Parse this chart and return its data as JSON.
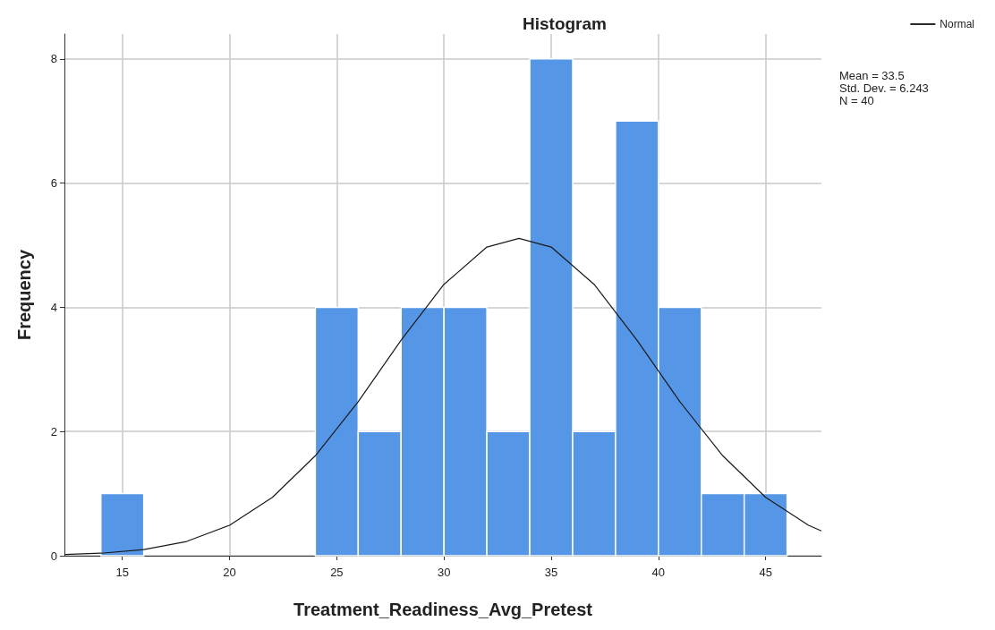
{
  "chart_data": {
    "type": "histogram",
    "title": "Histogram",
    "xlabel": "Treatment_Readiness_Avg_Pretest",
    "ylabel": "Frequency",
    "bins": [
      14,
      16,
      18,
      20,
      22,
      24,
      26,
      28,
      30,
      32,
      34,
      36,
      38,
      40,
      42,
      44,
      46
    ],
    "values": [
      1,
      0,
      0,
      0,
      0,
      4,
      2,
      4,
      4,
      2,
      8,
      2,
      7,
      4,
      1,
      1
    ],
    "color": "#5596e6",
    "series": [
      {
        "name": "Normal",
        "type": "line",
        "color": "#1a1a1a",
        "x": [
          12.3,
          14,
          16,
          18,
          20,
          22,
          24,
          26,
          28,
          30,
          32,
          33.5,
          35,
          37,
          39,
          41,
          43,
          45,
          47,
          47.6
        ],
        "values": [
          0.02,
          0.04,
          0.1,
          0.23,
          0.49,
          0.94,
          1.61,
          2.48,
          3.47,
          4.37,
          4.97,
          5.11,
          4.97,
          4.37,
          3.47,
          2.48,
          1.61,
          0.94,
          0.49,
          0.4
        ]
      }
    ],
    "xlim": [
      12.3,
      47.6
    ],
    "xticks": [
      15,
      20,
      25,
      30,
      35,
      40,
      45
    ],
    "ylim": [
      0,
      8.4
    ],
    "yticks": [
      0,
      2,
      4,
      6,
      8
    ],
    "grid": true,
    "legend": "top right",
    "marker": "none",
    "line_style": "solid",
    "annotations": [
      "Mean = 33.5",
      "Std. Dev. = 6.243",
      "N = 40"
    ]
  }
}
